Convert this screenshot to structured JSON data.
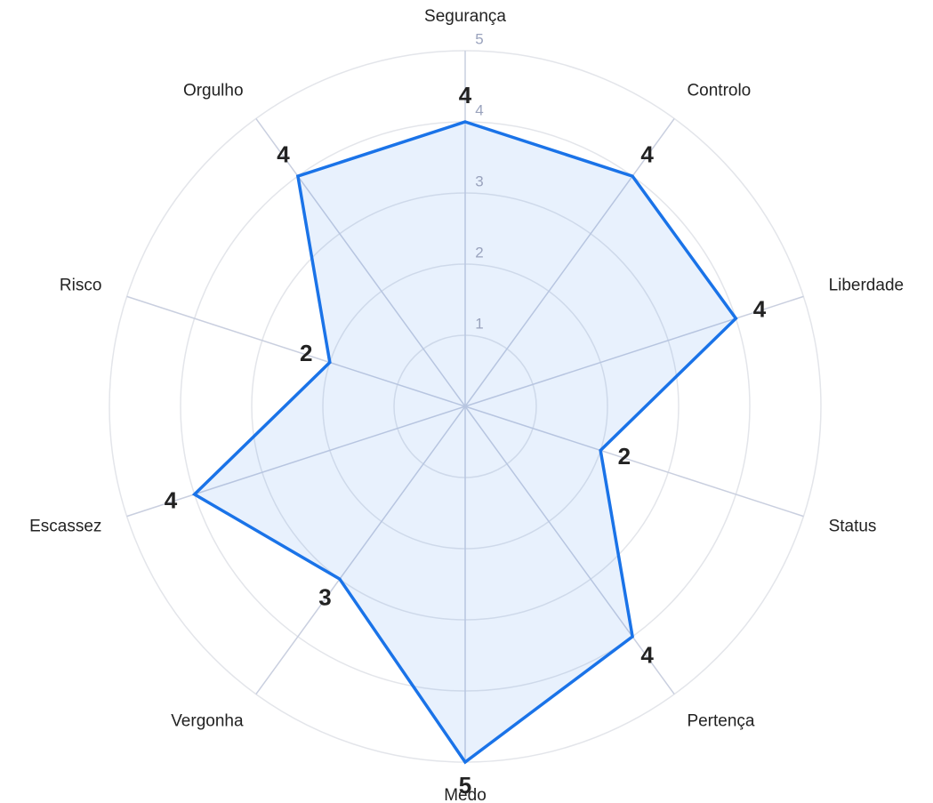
{
  "chart_data": {
    "type": "radar",
    "categories": [
      "Segurança",
      "Controlo",
      "Liberdade",
      "Status",
      "Pertença",
      "Medo",
      "Vergonha",
      "Escassez",
      "Risco",
      "Orgulho"
    ],
    "series": [
      {
        "color": "#1a73e8",
        "values": [
          4,
          4,
          4,
          2,
          4,
          5,
          3,
          4,
          2,
          4
        ]
      }
    ],
    "rlim": [
      0,
      5
    ],
    "rticks": [
      1,
      2,
      3,
      4,
      5
    ],
    "grid": true
  }
}
